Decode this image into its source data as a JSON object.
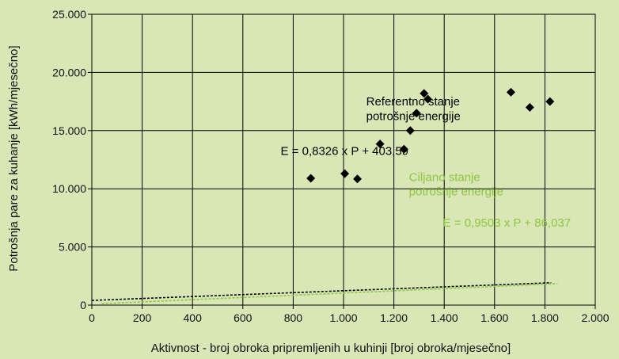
{
  "chart_data": {
    "type": "scatter",
    "xlabel": "Aktivnost - broj obroka pripremljenih u kuhinji [broj obroka/mjesečno]",
    "ylabel": "Potrošnja pare za kuhanje [kWh/mjesečno]",
    "xlim": [
      0,
      2000
    ],
    "ylim": [
      0,
      25000
    ],
    "x_ticks": [
      {
        "value": 0,
        "label": "0"
      },
      {
        "value": 200,
        "label": "200"
      },
      {
        "value": 400,
        "label": "400"
      },
      {
        "value": 600,
        "label": "600"
      },
      {
        "value": 800,
        "label": "800"
      },
      {
        "value": 1000,
        "label": "1.000"
      },
      {
        "value": 1200,
        "label": "1.200"
      },
      {
        "value": 1400,
        "label": "1.400"
      },
      {
        "value": 1600,
        "label": "1.600"
      },
      {
        "value": 1800,
        "label": "1.800"
      },
      {
        "value": 2000,
        "label": "2.000"
      }
    ],
    "y_ticks": [
      {
        "value": 0,
        "label": "0"
      },
      {
        "value": 5000,
        "label": "5.000"
      },
      {
        "value": 10000,
        "label": "10.000"
      },
      {
        "value": 15000,
        "label": "15.000"
      },
      {
        "value": 20000,
        "label": "20.000"
      },
      {
        "value": 25000,
        "label": "25.000"
      }
    ],
    "grid": true,
    "points": [
      {
        "x": 870,
        "y": 10900
      },
      {
        "x": 1005,
        "y": 11300
      },
      {
        "x": 1055,
        "y": 10850
      },
      {
        "x": 1145,
        "y": 13850
      },
      {
        "x": 1240,
        "y": 13400
      },
      {
        "x": 1265,
        "y": 15000
      },
      {
        "x": 1290,
        "y": 16500
      },
      {
        "x": 1320,
        "y": 18200
      },
      {
        "x": 1335,
        "y": 17700
      },
      {
        "x": 1665,
        "y": 18300
      },
      {
        "x": 1740,
        "y": 17000
      },
      {
        "x": 1820,
        "y": 17500
      }
    ],
    "lines": [
      {
        "slope": 0.8326,
        "intercept": 403.59,
        "x_range": [
          0,
          1825
        ],
        "color": "#000000"
      },
      {
        "slope": 0.9503,
        "intercept": 86.037,
        "x_range": [
          40,
          1850
        ],
        "color": "#8dc63f"
      }
    ],
    "annotations": [
      {
        "text": "Referentno stanje",
        "x": 1090,
        "y": 17150,
        "color": "#000000"
      },
      {
        "text": "potrošnje energije",
        "x": 1090,
        "y": 15900,
        "color": "#000000"
      },
      {
        "text": "E = 0,8326 x P + 403,59",
        "x": 750,
        "y": 12900,
        "color": "#000000"
      },
      {
        "text": "Ciljano stanje",
        "x": 1260,
        "y": 10650,
        "color": "#8dc63f"
      },
      {
        "text": "potrošnje energije",
        "x": 1260,
        "y": 9450,
        "color": "#8dc63f"
      },
      {
        "text": "E = 0,9503 x P + 86,037",
        "x": 1395,
        "y": 6750,
        "color": "#8dc63f"
      }
    ]
  }
}
